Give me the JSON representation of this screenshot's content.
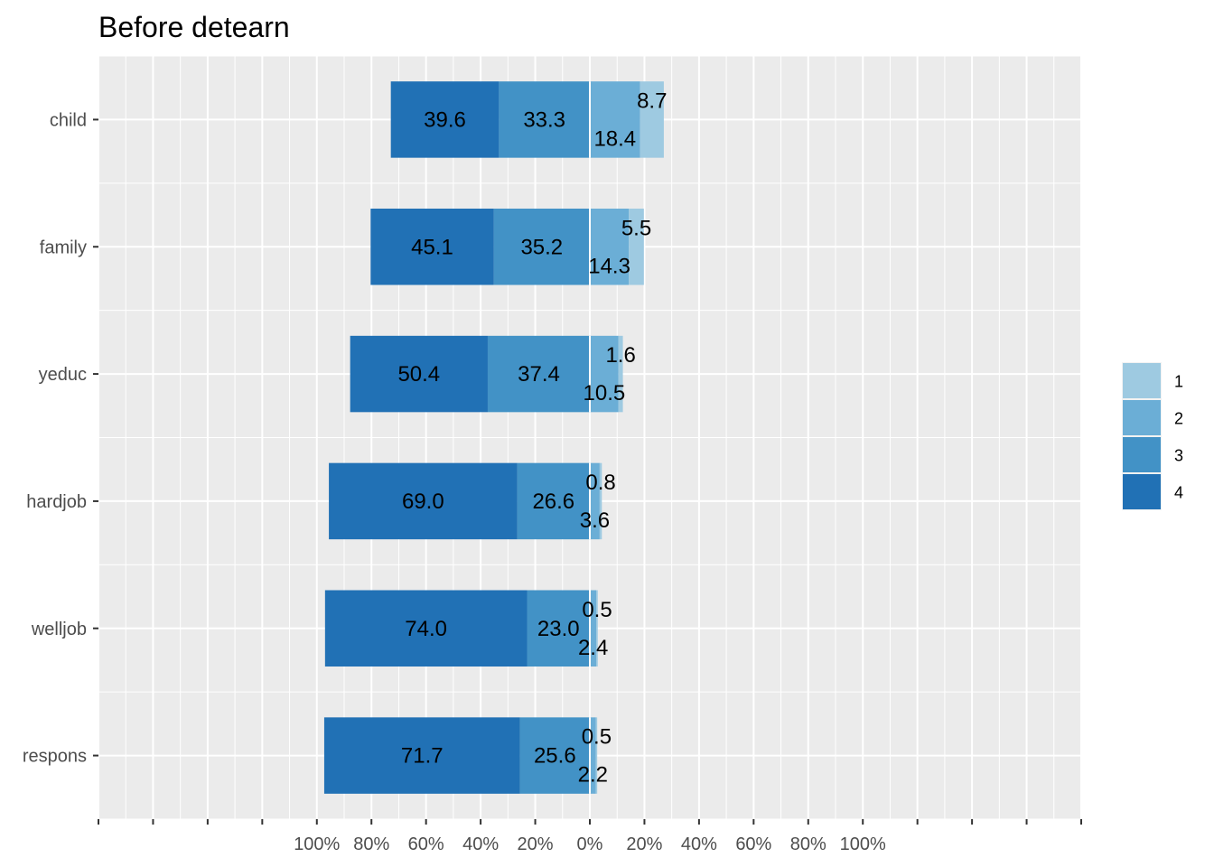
{
  "chart_data": {
    "type": "bar",
    "orientation": "horizontal",
    "stacking": "diverging",
    "title": "Before detearn",
    "xlabel": "",
    "ylabel": "",
    "categories": [
      "child",
      "family",
      "yeduc",
      "hardjob",
      "welljob",
      "respons"
    ],
    "series": [
      {
        "name": "1",
        "side": "positive",
        "color": "#9ecae1",
        "values": [
          8.7,
          5.5,
          1.6,
          0.8,
          0.5,
          0.5
        ]
      },
      {
        "name": "2",
        "side": "positive",
        "color": "#6baed6",
        "values": [
          18.4,
          14.3,
          10.5,
          3.6,
          2.4,
          2.2
        ]
      },
      {
        "name": "3",
        "side": "negative",
        "color": "#4292c6",
        "values": [
          33.3,
          35.2,
          37.4,
          26.6,
          23.0,
          25.6
        ]
      },
      {
        "name": "4",
        "side": "negative",
        "color": "#2171b5",
        "values": [
          39.6,
          45.1,
          50.4,
          69.0,
          74.0,
          71.7
        ]
      }
    ],
    "label_text": {
      "1": [
        "8.7",
        "5.5",
        "1.6",
        "0.8",
        "0.5",
        "0.5"
      ],
      "2": [
        "18.4",
        "14.3",
        "10.5",
        "3.6",
        "2.4",
        "2.2"
      ],
      "3": [
        "33.3",
        "35.2",
        "37.4",
        "26.6",
        "23.0",
        "25.6"
      ],
      "4": [
        "39.6",
        "45.1",
        "50.4",
        "69.0",
        "74.0",
        "71.7"
      ]
    },
    "xlim": [
      -180,
      180
    ],
    "x_ticks": [
      -180,
      -160,
      -140,
      -120,
      -100,
      -80,
      -60,
      -40,
      -20,
      0,
      20,
      40,
      60,
      80,
      100,
      120,
      140,
      160,
      180
    ],
    "x_tick_labels": [
      "",
      "",
      "",
      "",
      "100%",
      "80%",
      "60%",
      "40%",
      "20%",
      "0%",
      "20%",
      "40%",
      "60%",
      "80%",
      "100%",
      "",
      "",
      "",
      ""
    ],
    "grid": true,
    "panel_background": "#ebebeb",
    "legend": {
      "position": "right",
      "order": [
        "1",
        "2",
        "3",
        "4"
      ],
      "title": ""
    }
  }
}
